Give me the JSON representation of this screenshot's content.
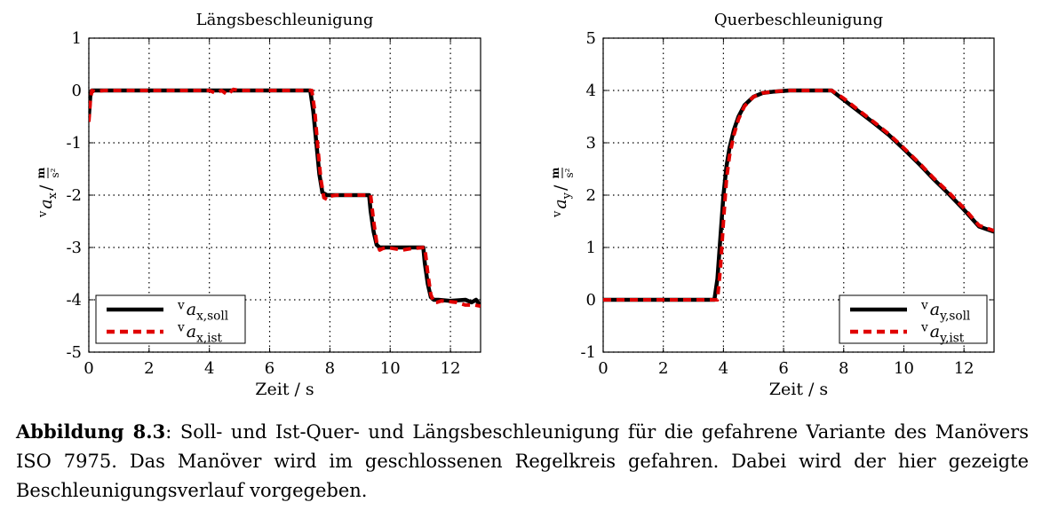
{
  "chart_data": [
    {
      "type": "line",
      "title": "Längsbeschleunigung",
      "xlabel": "Zeit / s",
      "ylabel": {
        "prefix": "v",
        "symbol": "a",
        "subscript": "x",
        "unit_num": "m",
        "unit_den": "s²"
      },
      "xlim": [
        0,
        13
      ],
      "ylim": [
        -5,
        1
      ],
      "xticks": [
        "0",
        "2",
        "4",
        "6",
        "8",
        "10",
        "12"
      ],
      "yticks": [
        "-5",
        "-4",
        "-3",
        "-2",
        "-1",
        "0",
        "1"
      ],
      "grid": true,
      "legend_position": "bottom-left",
      "series": [
        {
          "name": {
            "prefix": "v",
            "symbol": "a",
            "subscript": "x,soll"
          },
          "color": "#000000",
          "style": "solid",
          "x": [
            0,
            0.05,
            0.1,
            0.2,
            4.0,
            7.35,
            7.45,
            7.55,
            7.65,
            7.75,
            7.9,
            8.2,
            9.3,
            9.35,
            9.45,
            9.55,
            9.65,
            9.8,
            10.2,
            11.1,
            11.15,
            11.25,
            11.35,
            11.45,
            11.6,
            12.0,
            12.5,
            12.7,
            12.85,
            12.95,
            13.0
          ],
          "y": [
            -0.5,
            -0.1,
            0.0,
            0.0,
            0.0,
            0.0,
            -0.4,
            -1.0,
            -1.6,
            -1.95,
            -2.0,
            -2.0,
            -2.0,
            -2.3,
            -2.7,
            -2.95,
            -3.0,
            -3.0,
            -3.0,
            -3.0,
            -3.3,
            -3.7,
            -3.95,
            -4.0,
            -4.0,
            -4.02,
            -4.0,
            -4.05,
            -4.0,
            -4.08,
            -4.05
          ]
        },
        {
          "name": {
            "prefix": "v",
            "symbol": "a",
            "subscript": "x,ist"
          },
          "color": "#e00000",
          "style": "dashed",
          "x": [
            0,
            0.05,
            0.1,
            0.2,
            0.5,
            4.0,
            4.2,
            4.4,
            4.6,
            4.8,
            5.0,
            7.4,
            7.5,
            7.6,
            7.7,
            7.8,
            7.9,
            8.0,
            8.2,
            9.35,
            9.45,
            9.55,
            9.65,
            9.75,
            9.9,
            10.4,
            10.7,
            11.15,
            11.25,
            11.35,
            11.45,
            11.55,
            11.7,
            12.2,
            12.5,
            12.8,
            13.0
          ],
          "y": [
            -0.6,
            -0.2,
            0.0,
            -0.02,
            0.0,
            0.0,
            -0.05,
            0.0,
            -0.08,
            0.02,
            0.0,
            0.0,
            -0.4,
            -1.1,
            -1.7,
            -2.05,
            -2.08,
            -2.02,
            -2.0,
            -2.0,
            -2.5,
            -2.9,
            -3.05,
            -3.02,
            -3.0,
            -3.05,
            -3.02,
            -3.0,
            -3.5,
            -3.9,
            -4.05,
            -4.05,
            -4.02,
            -4.05,
            -4.1,
            -4.1,
            -4.12
          ]
        }
      ]
    },
    {
      "type": "line",
      "title": "Querbeschleunigung",
      "xlabel": "Zeit / s",
      "ylabel": {
        "prefix": "v",
        "symbol": "a",
        "subscript": "y",
        "unit_num": "m",
        "unit_den": "s²"
      },
      "xlim": [
        0,
        13
      ],
      "ylim": [
        -1,
        5
      ],
      "xticks": [
        "0",
        "2",
        "4",
        "6",
        "8",
        "10",
        "12"
      ],
      "yticks": [
        "-1",
        "0",
        "1",
        "2",
        "3",
        "4",
        "5"
      ],
      "grid": true,
      "legend_position": "bottom-right",
      "series": [
        {
          "name": {
            "prefix": "v",
            "symbol": "a",
            "subscript": "y,soll"
          },
          "color": "#000000",
          "style": "solid",
          "x": [
            0,
            3.7,
            3.8,
            3.9,
            4.0,
            4.1,
            4.2,
            4.35,
            4.5,
            4.7,
            5.0,
            5.3,
            5.7,
            6.2,
            7.6,
            8.0,
            8.5,
            9.0,
            9.5,
            10.0,
            10.5,
            11.0,
            11.5,
            12.0,
            12.5,
            13.0
          ],
          "y": [
            0,
            0,
            0.4,
            1.2,
            2.0,
            2.55,
            2.9,
            3.25,
            3.5,
            3.72,
            3.88,
            3.95,
            3.98,
            4.0,
            4.0,
            3.82,
            3.6,
            3.38,
            3.15,
            2.88,
            2.6,
            2.3,
            2.02,
            1.72,
            1.4,
            1.3
          ]
        },
        {
          "name": {
            "prefix": "v",
            "symbol": "a",
            "subscript": "y,ist"
          },
          "color": "#e00000",
          "style": "dashed",
          "x": [
            0,
            3.8,
            3.9,
            4.0,
            4.1,
            4.2,
            4.35,
            4.5,
            4.7,
            5.0,
            5.3,
            5.7,
            6.2,
            7.6,
            8.0,
            8.5,
            9.0,
            9.5,
            10.0,
            10.5,
            11.0,
            11.5,
            12.0,
            12.5,
            13.0
          ],
          "y": [
            0,
            0,
            0.6,
            1.5,
            2.3,
            2.75,
            3.15,
            3.45,
            3.7,
            3.88,
            3.95,
            3.98,
            4.0,
            4.0,
            3.85,
            3.62,
            3.4,
            3.17,
            2.9,
            2.62,
            2.32,
            2.05,
            1.75,
            1.42,
            1.32
          ]
        }
      ]
    }
  ],
  "caption": {
    "label": "Abbildung 8.3",
    "text": ": Soll- und Ist-Quer- und Längsbeschleunigung für die gefahrene Variante des Manövers ISO 7975. Das Manöver wird im geschlossenen Regelkreis gefahren. Dabei wird der hier gezeigte Beschleunigungsverlauf vorgegeben."
  }
}
